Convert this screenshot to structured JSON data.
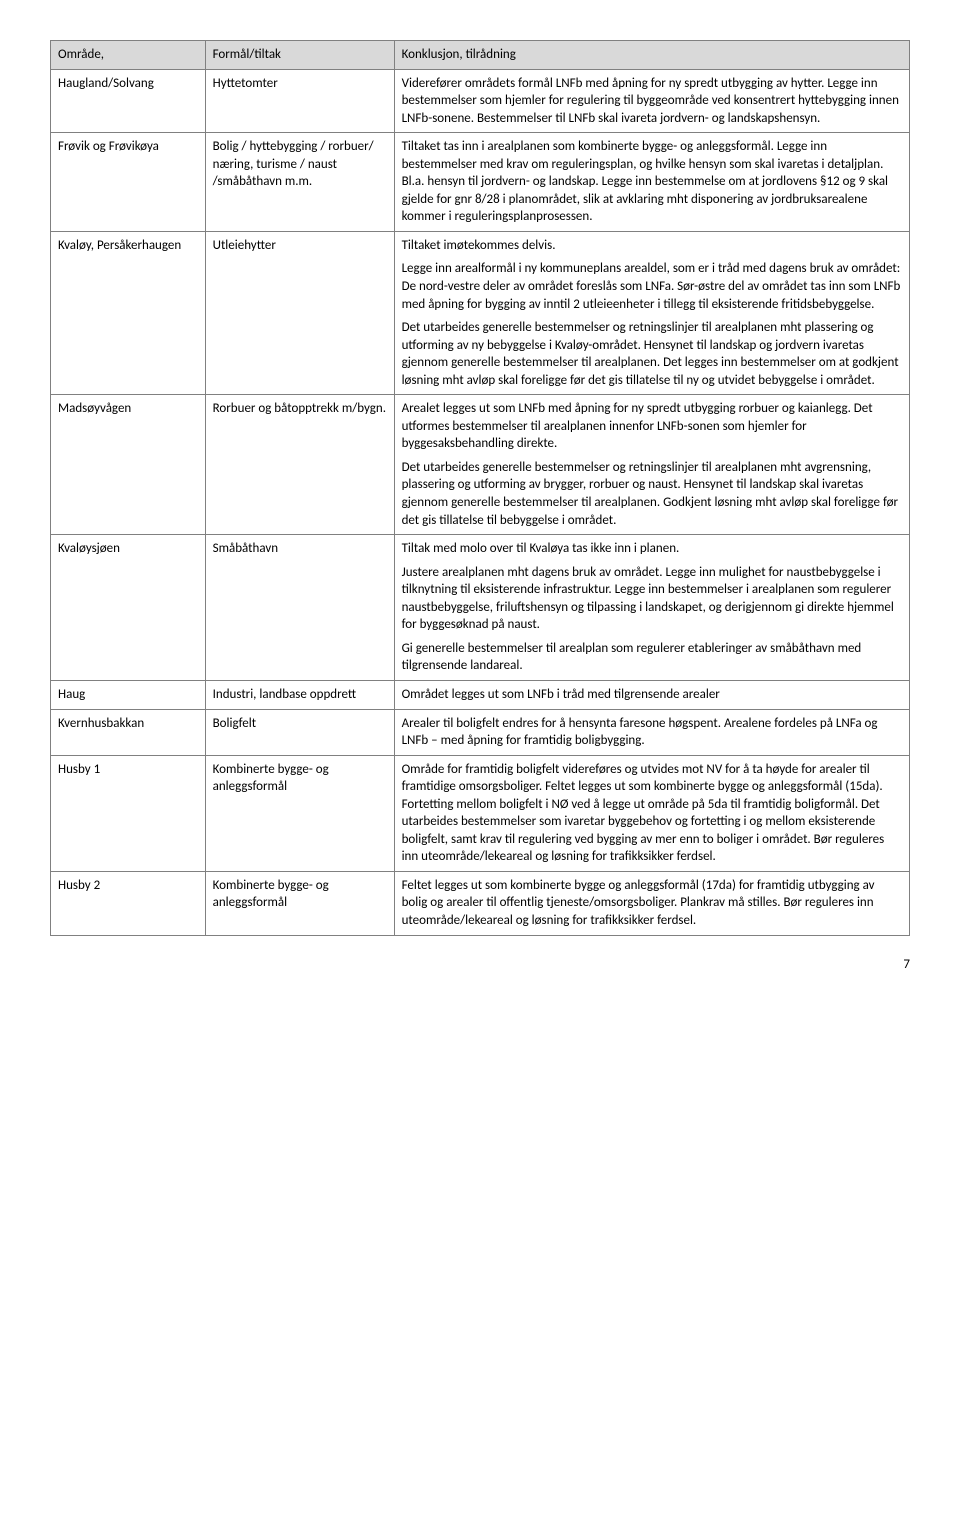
{
  "headers": {
    "col1": "Område,",
    "col2": "Formål/tiltak",
    "col3": "Konklusjon, tilrådning"
  },
  "rows": [
    {
      "area": "Haugland/Solvang",
      "purpose": "Hyttetomter",
      "conclusion": [
        "Viderefører områdets formål LNFb med åpning for ny spredt utbygging av hytter. Legge inn bestemmelser som hjemler for regulering til byggeområde ved konsentrert hyttebygging innen LNFb-sonene. Bestemmelser til LNFb skal ivareta jordvern- og landskapshensyn."
      ]
    },
    {
      "area": "Frøvik og Frøvikøya",
      "purpose": "Bolig / hyttebygging / rorbuer/ næring, turisme / naust /småbåthavn m.m.",
      "conclusion": [
        "Tiltaket tas inn i arealplanen som kombinerte bygge- og anleggsformål. Legge inn bestemmelser med krav om reguleringsplan, og hvilke hensyn som skal ivaretas i detaljplan. Bl.a. hensyn til jordvern- og landskap. Legge inn bestemmelse om at jordlovens §12 og 9 skal gjelde for gnr 8/28 i planområdet, slik at avklaring mht disponering av jordbruksarealene kommer i reguleringsplanprosessen."
      ]
    },
    {
      "area": "Kvaløy, Persåkerhaugen",
      "purpose": "Utleiehytter",
      "conclusion": [
        "Tiltaket imøtekommes delvis.",
        "Legge inn arealformål i ny kommuneplans arealdel, som er i tråd med dagens bruk av området: De nord-vestre deler av området foreslås som LNFa. Sør-østre del av området tas inn som LNFb med åpning for bygging av inntil 2 utleieenheter i tillegg til eksisterende fritidsbebyggelse.",
        "Det utarbeides generelle bestemmelser og retningslinjer til arealplanen mht plassering og utforming av ny bebyggelse i Kvaløy-området. Hensynet til landskap og jordvern ivaretas gjennom generelle bestemmelser til arealplanen. Det legges inn bestemmelser om at godkjent løsning mht avløp skal foreligge før det gis tillatelse til ny og utvidet bebyggelse i området."
      ]
    },
    {
      "area": "Madsøyvågen",
      "purpose": "Rorbuer og båtopptrekk m/bygn.",
      "conclusion": [
        "Arealet legges ut som LNFb med åpning for ny spredt utbygging rorbuer og kaianlegg. Det utformes bestemmelser til arealplanen innenfor LNFb-sonen som hjemler for byggesaksbehandling direkte.",
        "Det utarbeides generelle bestemmelser og retningslinjer til arealplanen mht avgrensning, plassering og utforming av brygger, rorbuer og naust. Hensynet til landskap skal ivaretas gjennom generelle bestemmelser til arealplanen. Godkjent løsning mht avløp skal foreligge før det gis tillatelse til bebyggelse i området."
      ]
    },
    {
      "area": "Kvaløysjøen",
      "purpose": "Småbåthavn",
      "conclusion": [
        "Tiltak med molo over til Kvaløya tas ikke inn i planen.",
        "Justere arealplanen mht dagens bruk av området. Legge inn mulighet for naustbebyggelse i tilknytning til eksisterende infrastruktur. Legge inn bestemmelser i arealplanen som regulerer naustbebyggelse, friluftshensyn og tilpassing i landskapet, og derigjennom gi direkte hjemmel for byggesøknad på naust.",
        "Gi generelle bestemmelser til arealplan som regulerer etableringer av småbåthavn med tilgrensende landareal."
      ]
    },
    {
      "area": "Haug",
      "purpose": "Industri, landbase oppdrett",
      "conclusion": [
        "Området legges ut som LNFb i tråd med tilgrensende arealer"
      ]
    },
    {
      "area": "Kvernhusbakkan",
      "purpose": "Boligfelt",
      "conclusion": [
        "Arealer til boligfelt endres for å hensynta faresone høgspent. Arealene fordeles på LNFa og LNFb – med åpning for framtidig boligbygging."
      ]
    },
    {
      "area": "Husby 1",
      "purpose": "Kombinerte bygge- og anleggsformål",
      "conclusion": [
        "Område for framtidig boligfelt videreføres og utvides mot NV for å ta høyde for arealer til framtidige omsorgsboliger. Feltet legges ut som kombinerte bygge og anleggsformål (15da). Fortetting mellom boligfelt i NØ ved å legge ut område på 5da til framtidig boligformål. Det utarbeides bestemmelser som ivaretar byggebehov og fortetting i og mellom eksisterende boligfelt, samt krav til regulering ved bygging av mer enn to boliger i området. Bør reguleres inn uteområde/lekeareal og løsning for trafikksikker ferdsel."
      ]
    },
    {
      "area": "Husby 2",
      "purpose": "Kombinerte bygge- og anleggsformål",
      "conclusion": [
        "Feltet legges ut som kombinerte bygge og anleggsformål (17da) for framtidig utbygging av bolig og arealer til offentlig tjeneste/omsorgsboliger. Plankrav må stilles. Bør reguleres inn uteområde/lekeareal og løsning for trafikksikker ferdsel."
      ]
    }
  ],
  "pageNumber": "7"
}
